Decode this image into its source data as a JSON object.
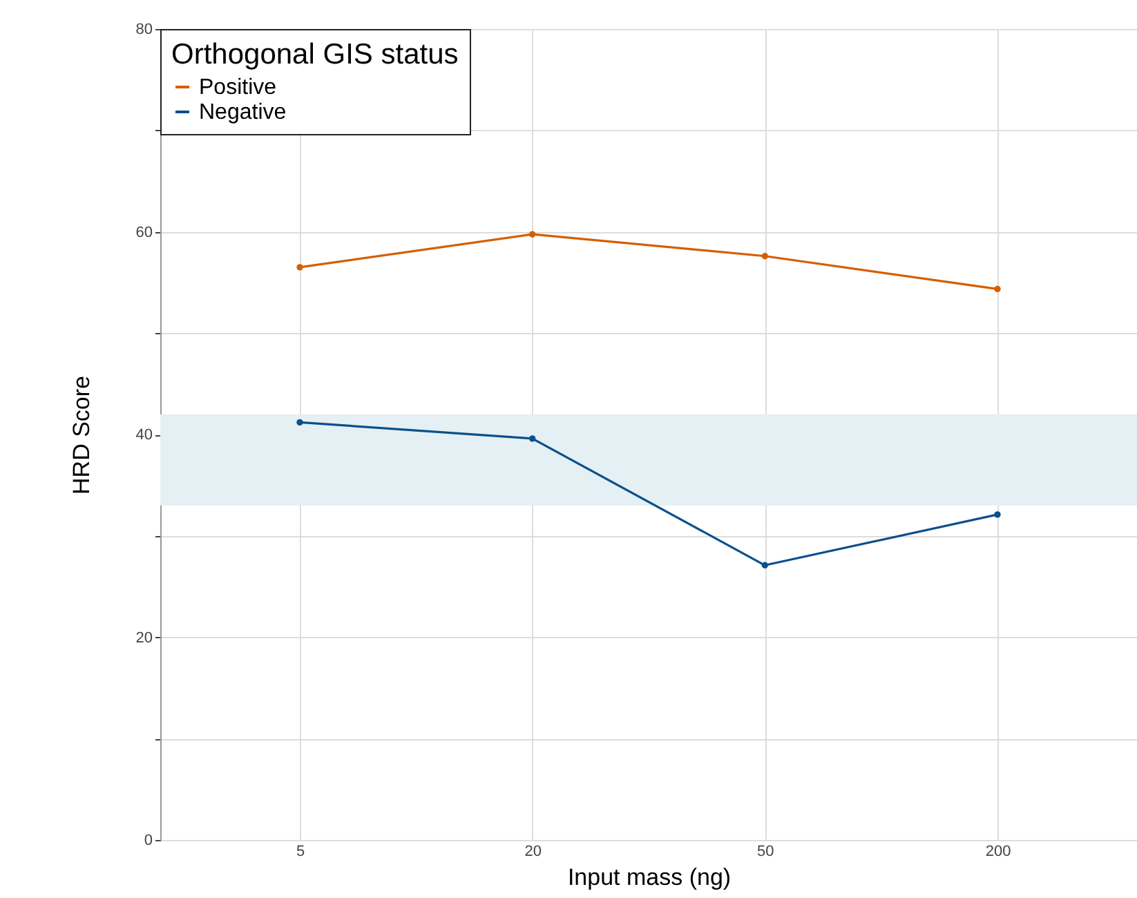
{
  "chart_data": {
    "type": "line",
    "xlabel": "Input mass (ng)",
    "ylabel": "HRD Score",
    "legend_title": "Orthogonal GIS status",
    "categories": [
      "5",
      "20",
      "50",
      "200"
    ],
    "series": [
      {
        "name": "Positive",
        "color": "#d55e00",
        "values": [
          56.5,
          59.75,
          57.6,
          54.35
        ]
      },
      {
        "name": "Negative",
        "color": "#0b4f8c",
        "values": [
          41.2,
          39.6,
          27.1,
          32.1
        ]
      }
    ],
    "ylim": [
      0,
      80
    ],
    "yticks": [
      0,
      {
        "value": 10,
        "label": null
      },
      20,
      {
        "value": 30,
        "label": null
      },
      40,
      {
        "value": 50,
        "label": null
      },
      60,
      {
        "value": 70,
        "label": null
      },
      80
    ],
    "bands": [
      {
        "axis": "y",
        "from": 33,
        "to": 42,
        "color": "#e4f0f3"
      }
    ],
    "grid": true,
    "legend": "top left",
    "marker": "circle",
    "line_style": "solid"
  }
}
